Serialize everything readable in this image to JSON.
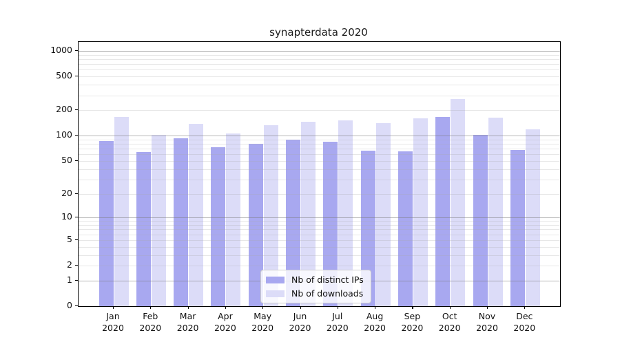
{
  "title": "synapterdata 2020",
  "chart_data": {
    "type": "bar",
    "title": "synapterdata 2020",
    "x_tick_months": [
      "Jan",
      "Feb",
      "Mar",
      "Apr",
      "May",
      "Jun",
      "Jul",
      "Aug",
      "Sep",
      "Oct",
      "Nov",
      "Dec"
    ],
    "x_tick_year": "2020",
    "xlabel": "",
    "ylabel": "",
    "y_scale": "log1p",
    "y_ticks": [
      0,
      1,
      2,
      5,
      10,
      20,
      50,
      100,
      200,
      500,
      1000
    ],
    "y_major_gridlines": [
      1,
      10,
      100,
      1000
    ],
    "ylim": [
      0,
      1275
    ],
    "grid": "both",
    "legend_position": "lower center",
    "series": [
      {
        "name": "Nb of distinct IPs",
        "color": "#a8a8f0",
        "values": [
          87,
          64,
          93,
          73,
          80,
          89,
          84,
          66,
          65,
          166,
          103,
          68
        ]
      },
      {
        "name": "Nb of downloads",
        "color": "#dcdcf8",
        "values": [
          168,
          103,
          137,
          107,
          133,
          146,
          151,
          141,
          162,
          270,
          165,
          120
        ]
      }
    ],
    "colors": {
      "dark_bar": "#a8a8f0",
      "light_bar": "#dcdcf8",
      "major_grid": "#787878",
      "minor_grid": "#aaaaaa",
      "axis": "#000000",
      "text": "#111111"
    }
  }
}
